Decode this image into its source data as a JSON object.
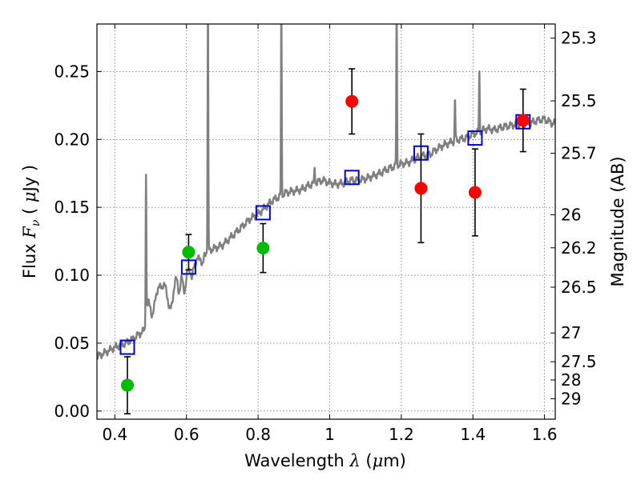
{
  "chart_data": {
    "type": "scatter",
    "xlabel": "Wavelength",
    "xlabel_symbol": "λ",
    "xlabel_unit_open": " (",
    "xlabel_unit_mu": "μ",
    "xlabel_unit_close": "m)",
    "ylabel": "Flux",
    "ylabel_symbol": "F",
    "ylabel_sub": "ν",
    "ylabel_unit_open": "( ",
    "ylabel_unit_mu": "μ",
    "ylabel_unit_close": "Jy )",
    "y2label": "Magnitude (AB)",
    "xlim": [
      0.35,
      1.63
    ],
    "ylim": [
      -0.006,
      0.285
    ],
    "grid": true,
    "xticks": [
      0.4,
      0.6,
      0.8,
      1.0,
      1.2,
      1.4,
      1.6
    ],
    "xtick_labels": [
      "0.4",
      "0.6",
      "0.8",
      "1",
      "1.2",
      "1.4",
      "1.6"
    ],
    "yticks": [
      0.0,
      0.05,
      0.1,
      0.15,
      0.2,
      0.25
    ],
    "ytick_labels": [
      "0.00",
      "0.05",
      "0.10",
      "0.15",
      "0.20",
      "0.25"
    ],
    "y2ticks": [
      {
        "flux": 0.2746,
        "label": "25.3"
      },
      {
        "flux": 0.2284,
        "label": "25.5"
      },
      {
        "flux": 0.1898,
        "label": "25.7"
      },
      {
        "flux": 0.1445,
        "label": "26"
      },
      {
        "flux": 0.1202,
        "label": "26.2"
      },
      {
        "flux": 0.0912,
        "label": "26.5"
      },
      {
        "flux": 0.0575,
        "label": "27"
      },
      {
        "flux": 0.0363,
        "label": "27.5"
      },
      {
        "flux": 0.0229,
        "label": "28"
      },
      {
        "flux": 0.0091,
        "label": "29"
      }
    ],
    "series": [
      {
        "kind": "spectrum",
        "color": "#808080",
        "baseline": [
          [
            0.35,
            0.04
          ],
          [
            0.38,
            0.044
          ],
          [
            0.4,
            0.047
          ],
          [
            0.43,
            0.05
          ],
          [
            0.45,
            0.053
          ],
          [
            0.47,
            0.057
          ],
          [
            0.485,
            0.06
          ],
          [
            0.49,
            0.078
          ],
          [
            0.5,
            0.088
          ],
          [
            0.52,
            0.09
          ],
          [
            0.55,
            0.096
          ],
          [
            0.58,
            0.1
          ],
          [
            0.6,
            0.104
          ],
          [
            0.62,
            0.108
          ],
          [
            0.64,
            0.114
          ],
          [
            0.66,
            0.118
          ],
          [
            0.68,
            0.12
          ],
          [
            0.7,
            0.122
          ],
          [
            0.72,
            0.127
          ],
          [
            0.74,
            0.132
          ],
          [
            0.76,
            0.137
          ],
          [
            0.78,
            0.142
          ],
          [
            0.8,
            0.145
          ],
          [
            0.82,
            0.15
          ],
          [
            0.84,
            0.155
          ],
          [
            0.86,
            0.158
          ],
          [
            0.88,
            0.161
          ],
          [
            0.9,
            0.162
          ],
          [
            0.92,
            0.163
          ],
          [
            0.94,
            0.166
          ],
          [
            0.96,
            0.168
          ],
          [
            0.98,
            0.17
          ],
          [
            1.0,
            0.168
          ],
          [
            1.02,
            0.167
          ],
          [
            1.04,
            0.168
          ],
          [
            1.06,
            0.17
          ],
          [
            1.08,
            0.17
          ],
          [
            1.1,
            0.171
          ],
          [
            1.12,
            0.173
          ],
          [
            1.14,
            0.175
          ],
          [
            1.16,
            0.178
          ],
          [
            1.18,
            0.18
          ],
          [
            1.2,
            0.182
          ],
          [
            1.22,
            0.183
          ],
          [
            1.24,
            0.186
          ],
          [
            1.26,
            0.188
          ],
          [
            1.28,
            0.189
          ],
          [
            1.3,
            0.193
          ],
          [
            1.32,
            0.196
          ],
          [
            1.34,
            0.198
          ],
          [
            1.36,
            0.2
          ],
          [
            1.38,
            0.201
          ],
          [
            1.4,
            0.204
          ],
          [
            1.42,
            0.206
          ],
          [
            1.44,
            0.208
          ],
          [
            1.46,
            0.207
          ],
          [
            1.48,
            0.209
          ],
          [
            1.5,
            0.21
          ],
          [
            1.52,
            0.211
          ],
          [
            1.54,
            0.212
          ],
          [
            1.56,
            0.212
          ],
          [
            1.58,
            0.214
          ],
          [
            1.6,
            0.215
          ],
          [
            1.62,
            0.212
          ],
          [
            1.63,
            0.212
          ]
        ],
        "dips": [
          [
            0.505,
            0.008,
            0.018
          ],
          [
            0.555,
            0.01,
            0.022
          ],
          [
            0.58,
            0.005,
            0.012
          ],
          [
            0.595,
            0.006,
            0.014
          ],
          [
            0.615,
            0.004,
            0.01
          ],
          [
            0.645,
            0.004,
            0.008
          ]
        ],
        "lines": [
          [
            0.487,
            0.177
          ],
          [
            0.66,
            0.3
          ],
          [
            0.865,
            0.3
          ],
          [
            0.958,
            0.18
          ],
          [
            1.187,
            0.3
          ],
          [
            1.35,
            0.23
          ],
          [
            1.418,
            0.25
          ]
        ]
      },
      {
        "kind": "model-photometry",
        "marker": "open-square",
        "color": "#0000cc",
        "points": [
          [
            0.435,
            0.047
          ],
          [
            0.606,
            0.106
          ],
          [
            0.814,
            0.146
          ],
          [
            1.062,
            0.172
          ],
          [
            1.255,
            0.19
          ],
          [
            1.406,
            0.201
          ],
          [
            1.54,
            0.213
          ]
        ]
      },
      {
        "kind": "observed-optical",
        "marker": "filled-circle",
        "color": "#00bb00",
        "points": [
          {
            "x": 0.435,
            "y": 0.019,
            "err": 0.021
          },
          {
            "x": 0.606,
            "y": 0.117,
            "err": 0.013
          },
          {
            "x": 0.814,
            "y": 0.12,
            "err": 0.018
          }
        ]
      },
      {
        "kind": "observed-nir",
        "marker": "filled-circle",
        "color": "#ff0000",
        "points": [
          {
            "x": 1.062,
            "y": 0.228,
            "err": 0.024
          },
          {
            "x": 1.255,
            "y": 0.164,
            "err": 0.04
          },
          {
            "x": 1.406,
            "y": 0.161,
            "err": 0.032
          },
          {
            "x": 1.54,
            "y": 0.214,
            "err": 0.023
          }
        ]
      }
    ]
  }
}
